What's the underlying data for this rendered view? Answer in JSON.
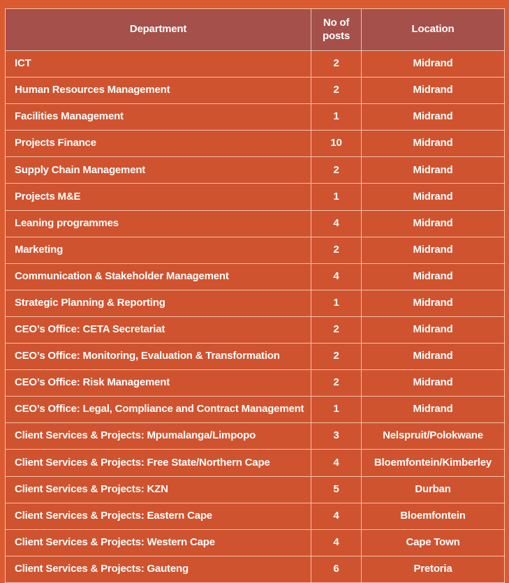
{
  "colors": {
    "page_background": "#dc5a30",
    "header_background": "#a5504a",
    "row_background": "#d0532f",
    "border": "#f2cbb0",
    "text": "#ffffff"
  },
  "table": {
    "columns": [
      {
        "label": "Department"
      },
      {
        "label": "No of posts"
      },
      {
        "label": "Location"
      }
    ],
    "rows": [
      {
        "department": "ICT",
        "posts": "2",
        "location": "Midrand"
      },
      {
        "department": "Human Resources Management",
        "posts": "2",
        "location": "Midrand"
      },
      {
        "department": "Facilities Management",
        "posts": "1",
        "location": "Midrand"
      },
      {
        "department": "Projects Finance",
        "posts": "10",
        "location": "Midrand"
      },
      {
        "department": "Supply Chain Management",
        "posts": "2",
        "location": "Midrand"
      },
      {
        "department": "Projects M&E",
        "posts": "1",
        "location": "Midrand"
      },
      {
        "department": "Leaning programmes",
        "posts": "4",
        "location": "Midrand"
      },
      {
        "department": "Marketing",
        "posts": "2",
        "location": "Midrand"
      },
      {
        "department": "Communication & Stakeholder Management",
        "posts": "4",
        "location": "Midrand"
      },
      {
        "department": "Strategic Planning & Reporting",
        "posts": "1",
        "location": "Midrand"
      },
      {
        "department": "CEO’s Office: CETA Secretariat",
        "posts": "2",
        "location": "Midrand"
      },
      {
        "department": "CEO’s Office: Monitoring, Evaluation & Transformation",
        "posts": "2",
        "location": "Midrand"
      },
      {
        "department": "CEO’s Office: Risk Management",
        "posts": "2",
        "location": "Midrand"
      },
      {
        "department": "CEO’s Office: Legal, Compliance and Contract Management",
        "posts": "1",
        "location": "Midrand"
      },
      {
        "department": "Client Services & Projects: Mpumalanga/Limpopo",
        "posts": "3",
        "location": "Nelspruit/Polokwane"
      },
      {
        "department": "Client Services & Projects: Free State/Northern Cape",
        "posts": "4",
        "location": "Bloemfontein/Kimberley"
      },
      {
        "department": "Client Services & Projects: KZN",
        "posts": "5",
        "location": "Durban"
      },
      {
        "department": "Client Services & Projects: Eastern Cape",
        "posts": "4",
        "location": "Bloemfontein"
      },
      {
        "department": "Client Services & Projects: Western Cape",
        "posts": "4",
        "location": "Cape Town"
      },
      {
        "department": "Client Services & Projects: Gauteng",
        "posts": "6",
        "location": "Pretoria"
      }
    ]
  }
}
